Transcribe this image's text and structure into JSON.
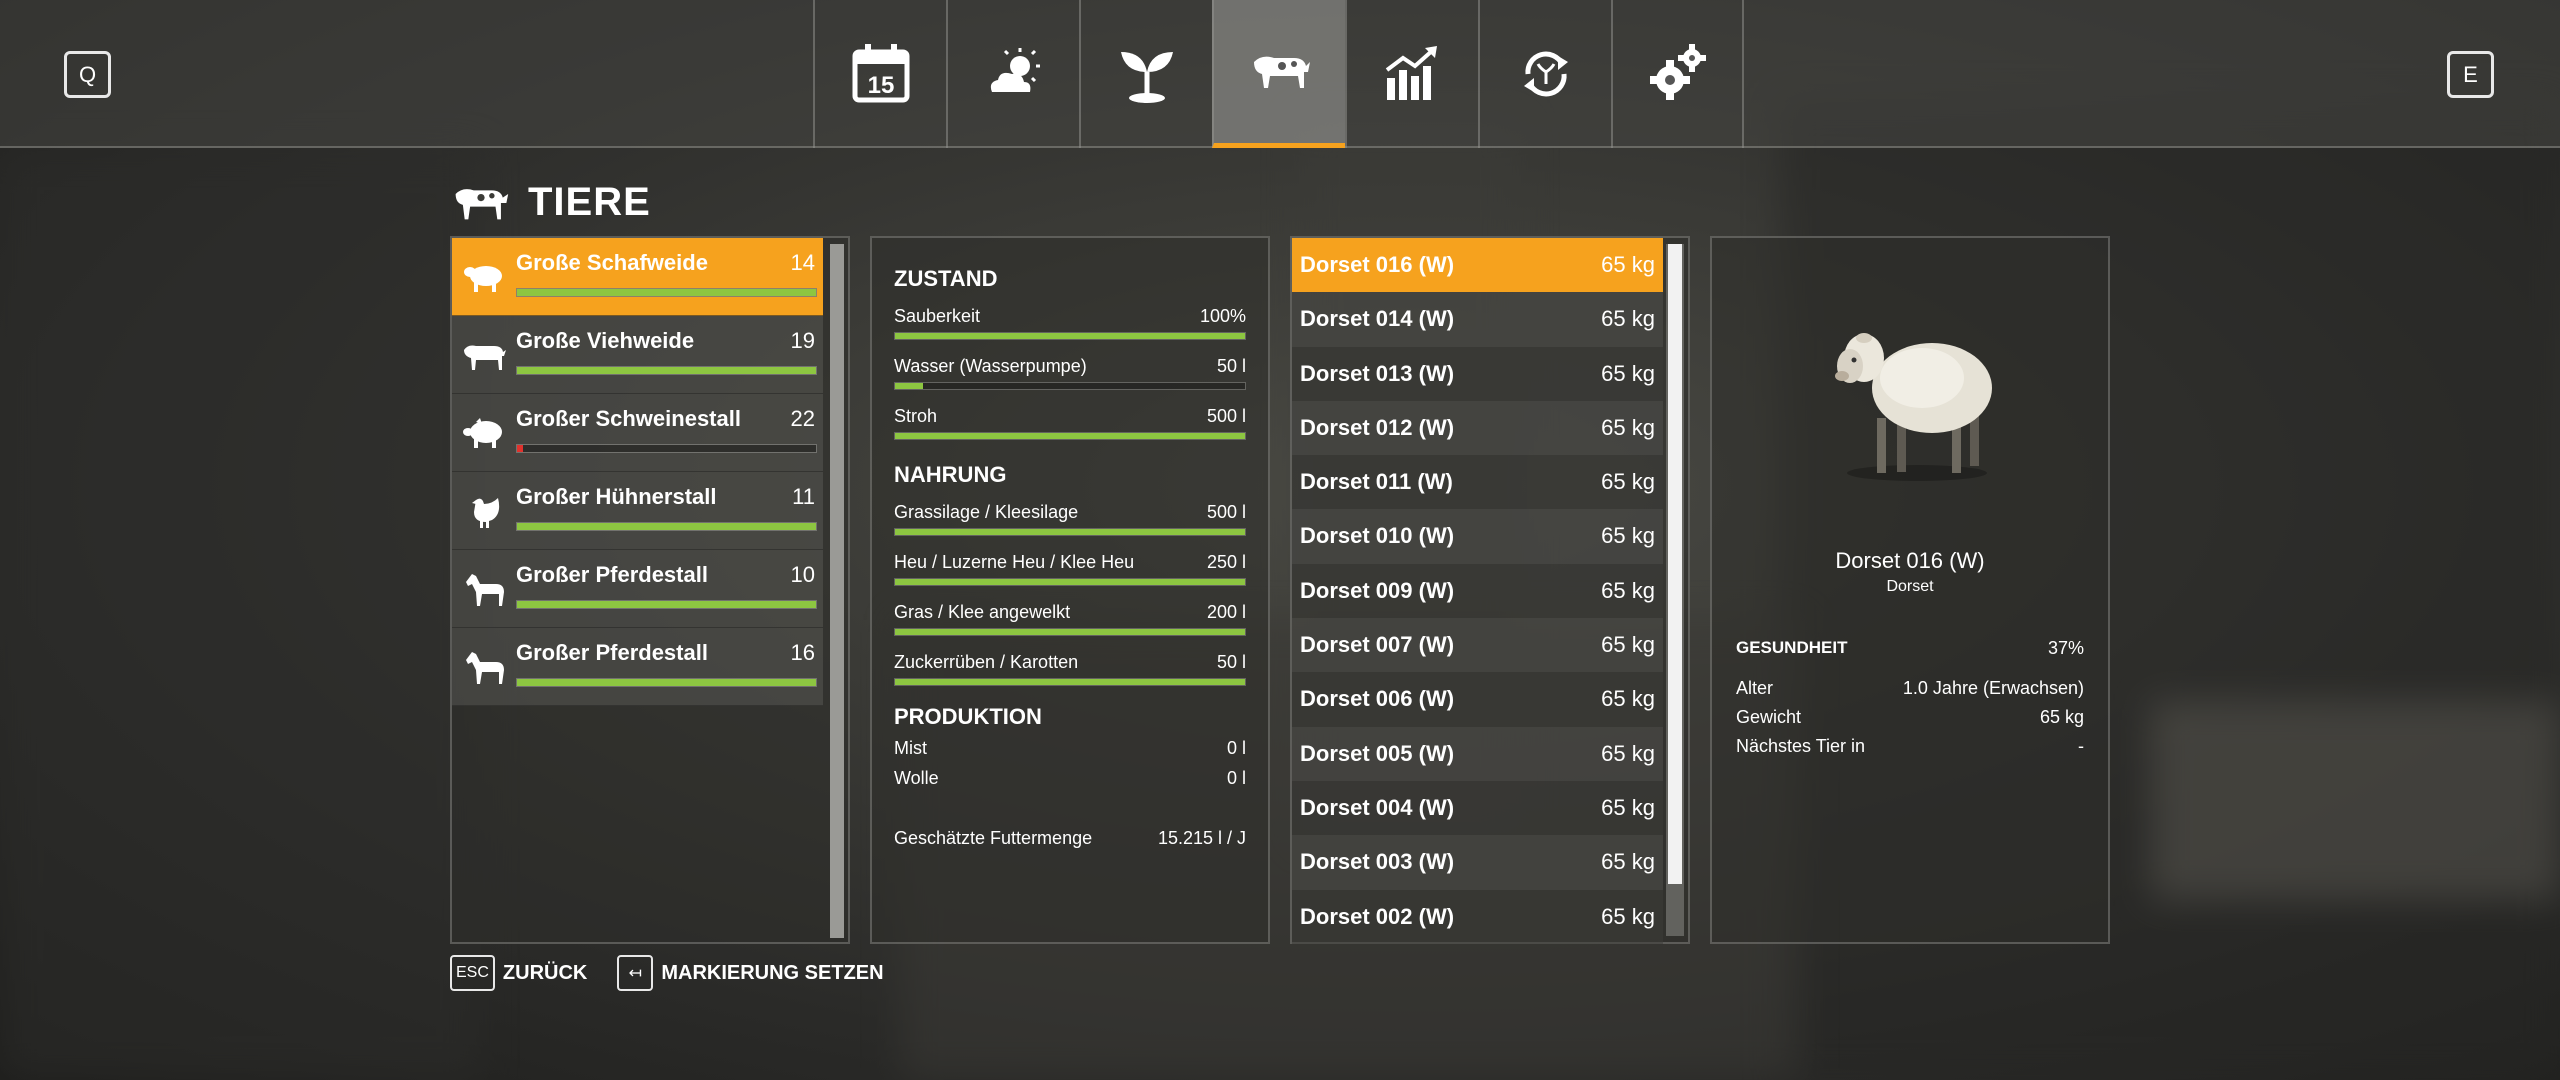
{
  "topbar": {
    "key_left": "Q",
    "key_right": "E",
    "tabs": [
      {
        "icon": "calendar-icon",
        "calendar_day": "15"
      },
      {
        "icon": "weather-icon"
      },
      {
        "icon": "sprout-icon"
      },
      {
        "icon": "cow-icon",
        "active": true
      },
      {
        "icon": "chart-icon"
      },
      {
        "icon": "cycle-icon"
      },
      {
        "icon": "gears-icon"
      }
    ]
  },
  "page": {
    "title": "TIERE"
  },
  "husbandries": [
    {
      "name": "Große Schafweide",
      "count": "14",
      "icon": "sheep-icon",
      "level": 1.0,
      "selected": true
    },
    {
      "name": "Große Viehweide",
      "count": "19",
      "icon": "cow-icon",
      "level": 1.0
    },
    {
      "name": "Großer Schweinestall",
      "count": "22",
      "icon": "pig-icon",
      "level": 0.02
    },
    {
      "name": "Großer Hühnerstall",
      "count": "11",
      "icon": "chicken-icon",
      "level": 1.0
    },
    {
      "name": "Großer Pferdestall",
      "count": "10",
      "icon": "horse-icon",
      "level": 1.0
    },
    {
      "name": "Großer Pferdestall",
      "count": "16",
      "icon": "horse-icon",
      "level": 1.0
    }
  ],
  "condition": {
    "title": "ZUSTAND",
    "items": [
      {
        "label": "Sauberkeit",
        "value": "100%",
        "level": 1.0
      },
      {
        "label": "Wasser (Wasserpumpe)",
        "value": "50 l",
        "level": 0.08
      },
      {
        "label": "Stroh",
        "value": "500 l",
        "level": 1.0
      }
    ]
  },
  "food": {
    "title": "NAHRUNG",
    "items": [
      {
        "label": "Grassilage / Kleesilage",
        "value": "500 l",
        "level": 1.0
      },
      {
        "label": "Heu / Luzerne Heu / Klee Heu",
        "value": "250 l",
        "level": 1.0
      },
      {
        "label": "Gras / Klee angewelkt",
        "value": "200 l",
        "level": 1.0
      },
      {
        "label": "Zuckerrüben / Karotten",
        "value": "50 l",
        "level": 1.0
      }
    ]
  },
  "production": {
    "title": "PRODUKTION",
    "items": [
      {
        "label": "Mist",
        "value": "0 l"
      },
      {
        "label": "Wolle",
        "value": "0 l"
      }
    ]
  },
  "feed_estimate": {
    "label": "Geschätzte Futtermenge",
    "value": "15.215 l / J"
  },
  "animals": [
    {
      "name": "Dorset 016 (W)",
      "weight": "65 kg",
      "selected": true
    },
    {
      "name": "Dorset 014 (W)",
      "weight": "65 kg"
    },
    {
      "name": "Dorset 013 (W)",
      "weight": "65 kg"
    },
    {
      "name": "Dorset 012 (W)",
      "weight": "65 kg"
    },
    {
      "name": "Dorset 011 (W)",
      "weight": "65 kg"
    },
    {
      "name": "Dorset 010 (W)",
      "weight": "65 kg"
    },
    {
      "name": "Dorset 009 (W)",
      "weight": "65 kg"
    },
    {
      "name": "Dorset 007 (W)",
      "weight": "65 kg"
    },
    {
      "name": "Dorset 006 (W)",
      "weight": "65 kg"
    },
    {
      "name": "Dorset 005 (W)",
      "weight": "65 kg"
    },
    {
      "name": "Dorset 004 (W)",
      "weight": "65 kg"
    },
    {
      "name": "Dorset 003 (W)",
      "weight": "65 kg"
    },
    {
      "name": "Dorset 002 (W)",
      "weight": "65 kg"
    }
  ],
  "detail": {
    "name": "Dorset 016 (W)",
    "breed": "Dorset",
    "health_label": "GESUNDHEIT",
    "health_value": "37%",
    "age_label": "Alter",
    "age_value": "1.0 Jahre (Erwachsen)",
    "weight_label": "Gewicht",
    "weight_value": "65 kg",
    "next_label": "Nächstes Tier in",
    "next_value": "-"
  },
  "hints": {
    "back_key": "ESC",
    "back_label": "ZURÜCK",
    "mark_key": "↤",
    "mark_label": "MARKIERUNG SETZEN"
  },
  "colors": {
    "accent": "#f6a21e",
    "bar_ok": "#8dc641",
    "bar_low": "#e0322d"
  }
}
